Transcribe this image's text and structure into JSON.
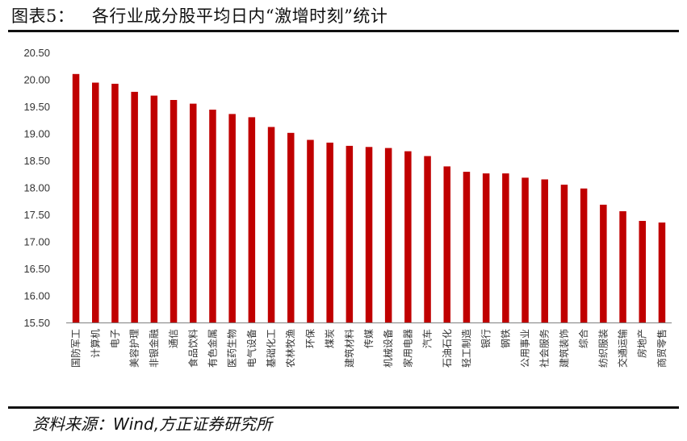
{
  "figure": {
    "title": "图表5：   各行业成分股平均日内“激增时刻”统计",
    "source": "资料来源：Wind,方正证券研究所"
  },
  "chart_data": {
    "type": "bar",
    "title": "",
    "xlabel": "",
    "ylabel": "",
    "ylim": [
      15.5,
      20.5
    ],
    "yticks": [
      "15.50",
      "16.00",
      "16.50",
      "17.00",
      "17.50",
      "18.00",
      "18.50",
      "19.00",
      "19.50",
      "20.00",
      "20.50"
    ],
    "grid": false,
    "legend": "none",
    "bar_color": "#C00000",
    "categories": [
      "国防军工",
      "计算机",
      "电子",
      "美容护理",
      "非银金融",
      "通信",
      "食品饮料",
      "有色金属",
      "医药生物",
      "电气设备",
      "基础化工",
      "农林牧渔",
      "环保",
      "煤炭",
      "建筑材料",
      "传媒",
      "机械设备",
      "家用电器",
      "汽车",
      "石油石化",
      "轻工制造",
      "银行",
      "钢铁",
      "公用事业",
      "社会服务",
      "建筑装饰",
      "综合",
      "纺织服装",
      "交通运输",
      "房地产",
      "商贸零售"
    ],
    "values": [
      20.1,
      19.94,
      19.92,
      19.77,
      19.7,
      19.62,
      19.55,
      19.44,
      19.36,
      19.3,
      19.12,
      19.01,
      18.88,
      18.83,
      18.77,
      18.75,
      18.73,
      18.67,
      18.58,
      18.39,
      18.29,
      18.26,
      18.26,
      18.18,
      18.15,
      18.05,
      17.98,
      17.68,
      17.56,
      17.38,
      17.35
    ]
  }
}
